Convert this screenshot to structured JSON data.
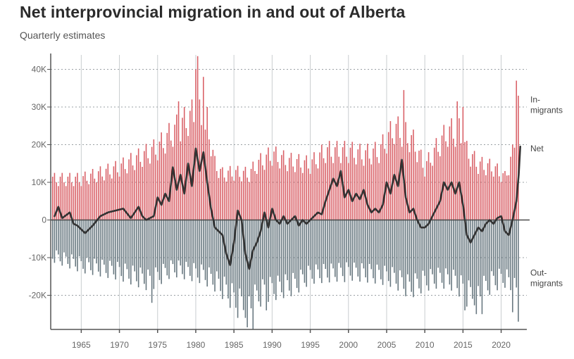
{
  "title": "Net interprovincial migration in and out of Alberta",
  "subtitle": "Quarterly estimates",
  "colors": {
    "in": "#d96067",
    "out": "#67777f",
    "net": "#333333",
    "grid_h": "#9aa0a4",
    "grid_v": "#c9cdd0",
    "axis": "#555555"
  },
  "chart_data": {
    "type": "bar",
    "grid": true,
    "xlim": [
      1961,
      2022.5
    ],
    "ylim": [
      -29000,
      43000
    ],
    "y_ticks": [
      40000,
      30000,
      20000,
      10000,
      0,
      -10000,
      -20000
    ],
    "y_tick_labels": [
      "40K",
      "30K",
      "20K",
      "10K",
      "0",
      "-10K",
      "-20K"
    ],
    "x_ticks": [
      1965,
      1970,
      1975,
      1980,
      1985,
      1990,
      1995,
      2000,
      2005,
      2010,
      2015,
      2020
    ],
    "x_tick_labels": [
      "1965",
      "1970",
      "1975",
      "1980",
      "1985",
      "1990",
      "1995",
      "2000",
      "2005",
      "2010",
      "2015",
      "2020"
    ],
    "series_labels": [
      {
        "name": "in",
        "lines": [
          "In-",
          "migrants"
        ]
      },
      {
        "name": "net",
        "lines": [
          "Net"
        ]
      },
      {
        "name": "out",
        "lines": [
          "Out-",
          "migrants"
        ]
      }
    ],
    "anchors": {
      "in_peak_avg": [
        [
          1961,
          12500
        ],
        [
          1965,
          12500
        ],
        [
          1970,
          16000
        ],
        [
          1975,
          22000
        ],
        [
          1977,
          27000
        ],
        [
          1980,
          33000
        ],
        [
          1981.5,
          30000
        ],
        [
          1982.5,
          17000
        ],
        [
          1983.5,
          14000
        ],
        [
          1985,
          14500
        ],
        [
          1987,
          14000
        ],
        [
          1988,
          17000
        ],
        [
          1990,
          20000
        ],
        [
          1992,
          18000
        ],
        [
          1995,
          17000
        ],
        [
          1997,
          21000
        ],
        [
          2000,
          21000
        ],
        [
          2002,
          20000
        ],
        [
          2004,
          21000
        ],
        [
          2006,
          28000
        ],
        [
          2007,
          27000
        ],
        [
          2008.5,
          24000
        ],
        [
          2010,
          16000
        ],
        [
          2011,
          20000
        ],
        [
          2013,
          27000
        ],
        [
          2014.5,
          27000
        ],
        [
          2015.5,
          21000
        ],
        [
          2017,
          17000
        ],
        [
          2019,
          16000
        ],
        [
          2020.5,
          13000
        ],
        [
          2021.5,
          20000
        ],
        [
          2022.5,
          36000
        ]
      ],
      "out_peak_avg": [
        [
          1961,
          -11000
        ],
        [
          1965,
          -14000
        ],
        [
          1970,
          -16000
        ],
        [
          1974,
          -19000
        ],
        [
          1977,
          -15000
        ],
        [
          1981,
          -17000
        ],
        [
          1982.5,
          -19000
        ],
        [
          1984,
          -22000
        ],
        [
          1985.5,
          -26000
        ],
        [
          1987,
          -26000
        ],
        [
          1989,
          -22000
        ],
        [
          1991,
          -21000
        ],
        [
          1993,
          -20000
        ],
        [
          1995,
          -17000
        ],
        [
          1998,
          -16500
        ],
        [
          2000,
          -16000
        ],
        [
          2002,
          -16500
        ],
        [
          2004,
          -17000
        ],
        [
          2006,
          -18000
        ],
        [
          2008,
          -21000
        ],
        [
          2010,
          -19000
        ],
        [
          2012,
          -18000
        ],
        [
          2014,
          -19000
        ],
        [
          2015.5,
          -23000
        ],
        [
          2017,
          -22500
        ],
        [
          2019,
          -19000
        ],
        [
          2020.5,
          -18000
        ],
        [
          2021.5,
          -21000
        ],
        [
          2022.5,
          -25000
        ]
      ],
      "net": [
        [
          1961.5,
          1000
        ],
        [
          1962,
          3500
        ],
        [
          1962.5,
          500
        ],
        [
          1963.5,
          2000
        ],
        [
          1964,
          -1000
        ],
        [
          1964.5,
          -1500
        ],
        [
          1965.5,
          -3500
        ],
        [
          1966.5,
          -1500
        ],
        [
          1967.5,
          1000
        ],
        [
          1968.5,
          2000
        ],
        [
          1969.5,
          2500
        ],
        [
          1970.5,
          3000
        ],
        [
          1971.5,
          500
        ],
        [
          1972.5,
          3500
        ],
        [
          1973,
          1000
        ],
        [
          1973.5,
          0
        ],
        [
          1974.5,
          1000
        ],
        [
          1975,
          6000
        ],
        [
          1975.5,
          4000
        ],
        [
          1976,
          7000
        ],
        [
          1976.5,
          5000
        ],
        [
          1977,
          14000
        ],
        [
          1977.5,
          8000
        ],
        [
          1978,
          12000
        ],
        [
          1978.5,
          7000
        ],
        [
          1979,
          15000
        ],
        [
          1979.5,
          9000
        ],
        [
          1980,
          19000
        ],
        [
          1980.5,
          13000
        ],
        [
          1981,
          18000
        ],
        [
          1981.5,
          10000
        ],
        [
          1982,
          3000
        ],
        [
          1982.5,
          -2000
        ],
        [
          1983.5,
          -4000
        ],
        [
          1984,
          -9000
        ],
        [
          1984.5,
          -12000
        ],
        [
          1985,
          -6000
        ],
        [
          1985.5,
          2500
        ],
        [
          1986,
          0
        ],
        [
          1986.5,
          -9000
        ],
        [
          1987,
          -13000
        ],
        [
          1987.5,
          -8000
        ],
        [
          1988,
          -6000
        ],
        [
          1988.5,
          -3000
        ],
        [
          1989,
          2000
        ],
        [
          1989.5,
          -2000
        ],
        [
          1990,
          3000
        ],
        [
          1990.5,
          0
        ],
        [
          1991,
          -1000
        ],
        [
          1991.5,
          1000
        ],
        [
          1992,
          -1000
        ],
        [
          1992.5,
          0
        ],
        [
          1993,
          1000
        ],
        [
          1993.5,
          -1500
        ],
        [
          1994,
          0
        ],
        [
          1994.5,
          -1000
        ],
        [
          1995,
          0
        ],
        [
          1995.5,
          1000
        ],
        [
          1996,
          2000
        ],
        [
          1996.5,
          1500
        ],
        [
          1997,
          5000
        ],
        [
          1997.5,
          8000
        ],
        [
          1998,
          11000
        ],
        [
          1998.5,
          9000
        ],
        [
          1999,
          13000
        ],
        [
          1999.5,
          6000
        ],
        [
          2000,
          8000
        ],
        [
          2000.5,
          5000
        ],
        [
          2001,
          7000
        ],
        [
          2001.5,
          5500
        ],
        [
          2002,
          8000
        ],
        [
          2002.5,
          4000
        ],
        [
          2003,
          2000
        ],
        [
          2003.5,
          3000
        ],
        [
          2004,
          2000
        ],
        [
          2004.5,
          4000
        ],
        [
          2005,
          10000
        ],
        [
          2005.5,
          7000
        ],
        [
          2006,
          12000
        ],
        [
          2006.5,
          9000
        ],
        [
          2007,
          16000
        ],
        [
          2007.5,
          6000
        ],
        [
          2008,
          2000
        ],
        [
          2008.5,
          3000
        ],
        [
          2009,
          0
        ],
        [
          2009.5,
          -2000
        ],
        [
          2010,
          -2000
        ],
        [
          2010.5,
          -1000
        ],
        [
          2011,
          1000
        ],
        [
          2011.5,
          3000
        ],
        [
          2012,
          5000
        ],
        [
          2012.5,
          10000
        ],
        [
          2013,
          8000
        ],
        [
          2013.5,
          10000
        ],
        [
          2014,
          7000
        ],
        [
          2014.5,
          10000
        ],
        [
          2015,
          4000
        ],
        [
          2015.5,
          -4000
        ],
        [
          2016,
          -6000
        ],
        [
          2016.5,
          -4000
        ],
        [
          2017,
          -2000
        ],
        [
          2017.5,
          -3000
        ],
        [
          2018,
          -1000
        ],
        [
          2018.5,
          0
        ],
        [
          2019,
          -1000
        ],
        [
          2019.5,
          500
        ],
        [
          2020,
          1000
        ],
        [
          2020.5,
          -3000
        ],
        [
          2021,
          -4000
        ],
        [
          2021.5,
          0
        ],
        [
          2022,
          5000
        ],
        [
          2022.3,
          12000
        ],
        [
          2022.5,
          19500
        ]
      ]
    },
    "highlights": {
      "in": [
        [
          1977.75,
          31500
        ],
        [
          1980.0,
          40000
        ],
        [
          1980.25,
          43500
        ],
        [
          1981.0,
          38000
        ],
        [
          1981.25,
          24000
        ],
        [
          2007.25,
          34500
        ],
        [
          2014.25,
          31500
        ],
        [
          2015.0,
          30000
        ],
        [
          2022.0,
          37000
        ],
        [
          2022.25,
          33000
        ]
      ],
      "out": [
        [
          1974.25,
          -22000
        ],
        [
          1986.75,
          -28500
        ],
        [
          1987.5,
          -29000
        ],
        [
          1989.25,
          -24000
        ],
        [
          1999.5,
          -16500
        ],
        [
          2015.25,
          -24000
        ],
        [
          2016.75,
          -25000
        ],
        [
          2017.5,
          -25000
        ],
        [
          2021.5,
          -24500
        ],
        [
          2022.25,
          -27000
        ]
      ]
    }
  }
}
